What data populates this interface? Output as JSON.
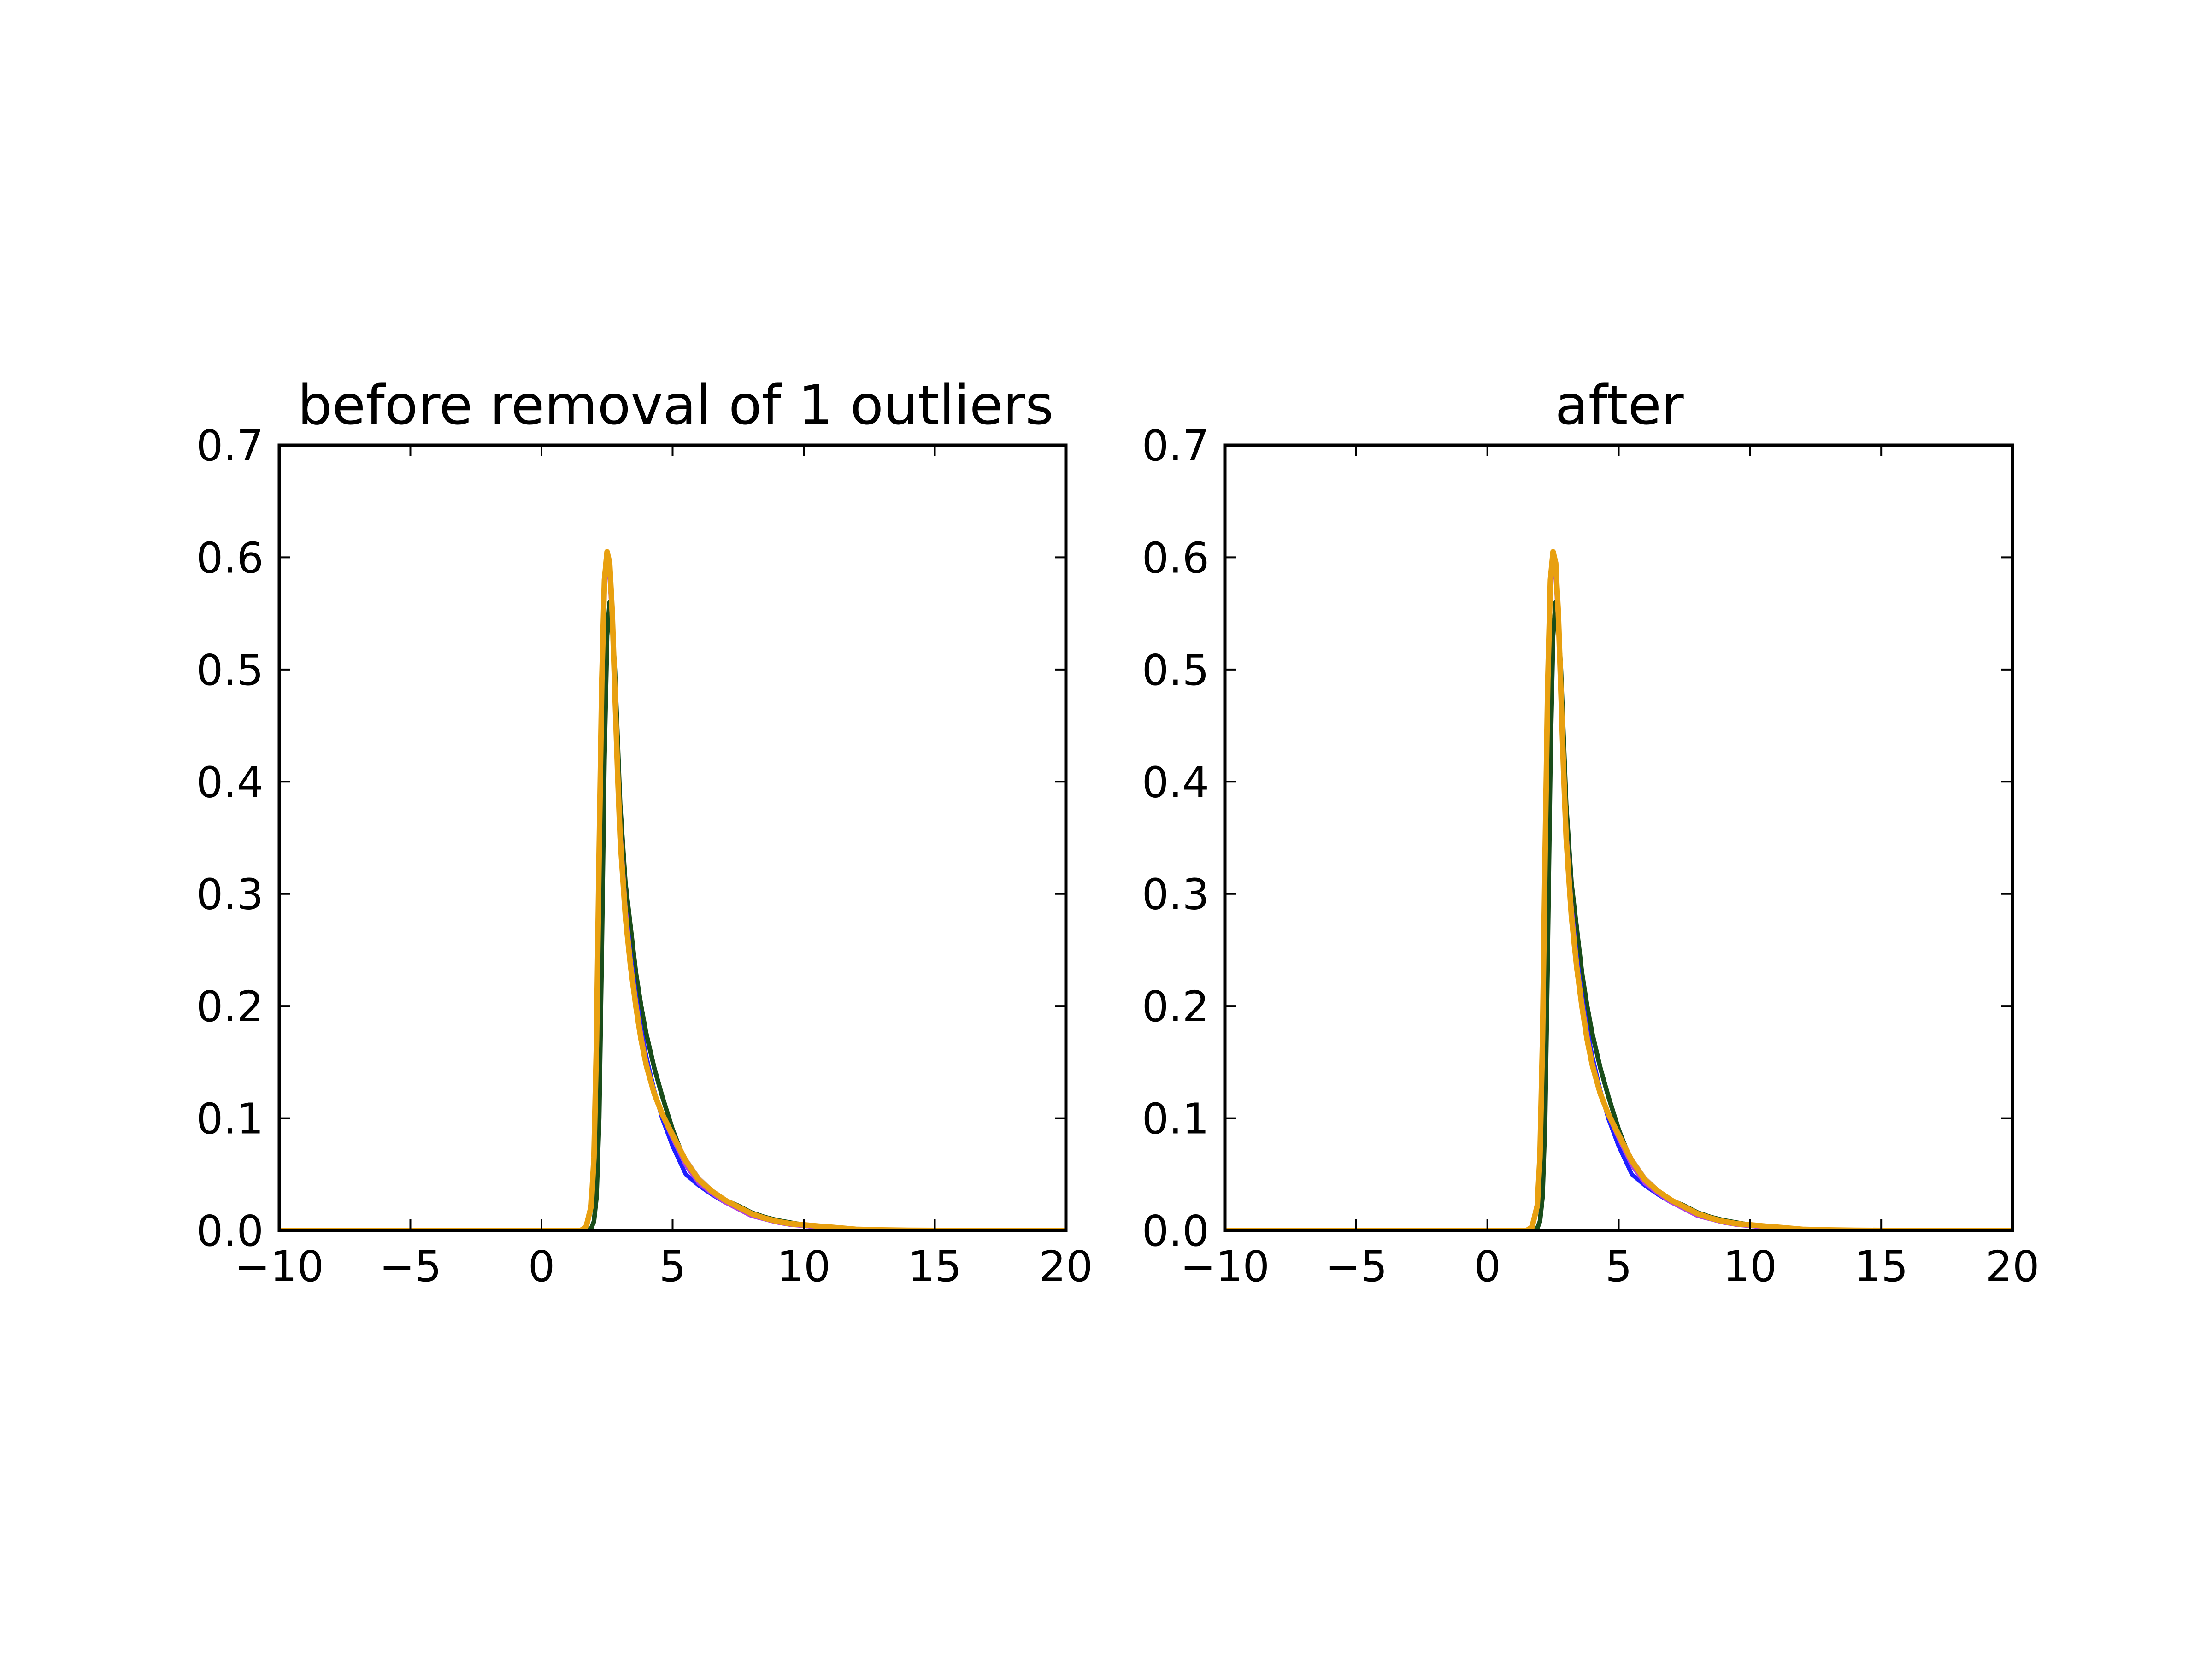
{
  "chart_data": [
    {
      "type": "line",
      "title": "before removal of 1 outliers",
      "xlabel": "",
      "ylabel": "",
      "xlim": [
        -10,
        20
      ],
      "ylim": [
        0.0,
        0.7
      ],
      "xticks": [
        -10,
        -5,
        0,
        5,
        10,
        15,
        20
      ],
      "xtick_labels": [
        "−10",
        "−5",
        "0",
        "5",
        "10",
        "15",
        "20"
      ],
      "yticks": [
        0.0,
        0.1,
        0.2,
        0.3,
        0.4,
        0.5,
        0.6,
        0.7
      ],
      "ytick_labels": [
        "0.0",
        "0.1",
        "0.2",
        "0.3",
        "0.4",
        "0.5",
        "0.6",
        "0.7"
      ],
      "grid": false,
      "legend": "none",
      "x": [
        -10,
        1.0,
        1.5,
        1.7,
        1.9,
        2.0,
        2.1,
        2.2,
        2.3,
        2.4,
        2.5,
        2.6,
        2.7,
        2.8,
        2.9,
        3.0,
        3.2,
        3.4,
        3.6,
        3.8,
        4.0,
        4.3,
        4.6,
        5.0,
        5.5,
        6.0,
        6.5,
        7.0,
        7.5,
        8.0,
        8.5,
        9.0,
        9.5,
        10.0,
        10.5,
        11.0,
        11.5,
        12.0,
        13.0,
        14.0,
        15.0,
        20.0
      ],
      "series": [
        {
          "color": "#1a4d1a",
          "values": [
            0,
            0,
            0,
            0,
            0.002,
            0.008,
            0.03,
            0.1,
            0.25,
            0.42,
            0.53,
            0.56,
            0.54,
            0.5,
            0.44,
            0.38,
            0.31,
            0.27,
            0.23,
            0.2,
            0.175,
            0.145,
            0.12,
            0.09,
            0.06,
            0.045,
            0.035,
            0.027,
            0.022,
            0.016,
            0.012,
            0.009,
            0.007,
            0.005,
            0.004,
            0.003,
            0.002,
            0.001,
            0.0004,
            0.0001,
            0,
            0
          ]
        },
        {
          "color": "#1f1fff",
          "values": [
            0,
            0,
            0,
            0.003,
            0.02,
            0.06,
            0.16,
            0.33,
            0.48,
            0.57,
            0.6,
            0.59,
            0.55,
            0.49,
            0.42,
            0.36,
            0.29,
            0.245,
            0.21,
            0.18,
            0.155,
            0.125,
            0.1,
            0.075,
            0.05,
            0.04,
            0.032,
            0.025,
            0.02,
            0.015,
            0.011,
            0.008,
            0.006,
            0.004,
            0.003,
            0.002,
            0.0015,
            0.001,
            0.0004,
            0.0001,
            0,
            0
          ]
        },
        {
          "color": "#b040e0",
          "values": [
            0,
            0,
            0,
            0.004,
            0.025,
            0.07,
            0.18,
            0.35,
            0.5,
            0.58,
            0.6,
            0.58,
            0.54,
            0.48,
            0.42,
            0.36,
            0.29,
            0.24,
            0.205,
            0.175,
            0.15,
            0.123,
            0.103,
            0.082,
            0.058,
            0.042,
            0.033,
            0.025,
            0.019,
            0.013,
            0.01,
            0.007,
            0.005,
            0.004,
            0.003,
            0.002,
            0.0015,
            0.001,
            0.0004,
            0.0001,
            0,
            0
          ]
        },
        {
          "color": "#8b1a1a",
          "values": [
            0,
            0,
            0,
            0.003,
            0.022,
            0.065,
            0.17,
            0.34,
            0.49,
            0.58,
            0.605,
            0.59,
            0.55,
            0.48,
            0.41,
            0.35,
            0.28,
            0.235,
            0.2,
            0.17,
            0.147,
            0.122,
            0.104,
            0.085,
            0.062,
            0.045,
            0.035,
            0.027,
            0.021,
            0.015,
            0.011,
            0.008,
            0.006,
            0.005,
            0.004,
            0.003,
            0.002,
            0.001,
            0.0004,
            0.0001,
            0,
            0
          ]
        },
        {
          "color": "#c9a0a0",
          "values": [
            0,
            0,
            0,
            0.003,
            0.022,
            0.065,
            0.17,
            0.34,
            0.49,
            0.58,
            0.6,
            0.59,
            0.55,
            0.48,
            0.41,
            0.35,
            0.28,
            0.235,
            0.2,
            0.17,
            0.147,
            0.123,
            0.105,
            0.087,
            0.064,
            0.047,
            0.036,
            0.028,
            0.021,
            0.015,
            0.011,
            0.008,
            0.006,
            0.005,
            0.004,
            0.003,
            0.002,
            0.001,
            0.0004,
            0.0001,
            0,
            0
          ]
        },
        {
          "color": "#e8a010",
          "values": [
            0,
            0,
            0,
            0.003,
            0.022,
            0.065,
            0.17,
            0.34,
            0.49,
            0.58,
            0.605,
            0.595,
            0.55,
            0.48,
            0.41,
            0.35,
            0.28,
            0.235,
            0.2,
            0.17,
            0.147,
            0.122,
            0.104,
            0.085,
            0.062,
            0.045,
            0.035,
            0.027,
            0.021,
            0.015,
            0.011,
            0.008,
            0.006,
            0.005,
            0.004,
            0.003,
            0.002,
            0.001,
            0.0004,
            0.0001,
            0,
            0
          ]
        }
      ]
    },
    {
      "type": "line",
      "title": "after",
      "xlabel": "",
      "ylabel": "",
      "xlim": [
        -10,
        20
      ],
      "ylim": [
        0.0,
        0.7
      ],
      "xticks": [
        -10,
        -5,
        0,
        5,
        10,
        15,
        20
      ],
      "xtick_labels": [
        "−10",
        "−5",
        "0",
        "5",
        "10",
        "15",
        "20"
      ],
      "yticks": [
        0.0,
        0.1,
        0.2,
        0.3,
        0.4,
        0.5,
        0.6,
        0.7
      ],
      "ytick_labels": [
        "0.0",
        "0.1",
        "0.2",
        "0.3",
        "0.4",
        "0.5",
        "0.6",
        "0.7"
      ],
      "grid": false,
      "legend": "none",
      "x": [
        -10,
        1.0,
        1.5,
        1.7,
        1.9,
        2.0,
        2.1,
        2.2,
        2.3,
        2.4,
        2.5,
        2.6,
        2.7,
        2.8,
        2.9,
        3.0,
        3.2,
        3.4,
        3.6,
        3.8,
        4.0,
        4.3,
        4.6,
        5.0,
        5.5,
        6.0,
        6.5,
        7.0,
        7.5,
        8.0,
        8.5,
        9.0,
        9.5,
        10.0,
        10.5,
        11.0,
        11.5,
        12.0,
        13.0,
        14.0,
        15.0,
        20.0
      ],
      "series": [
        {
          "color": "#1a4d1a",
          "values": [
            0,
            0,
            0,
            0,
            0.002,
            0.008,
            0.03,
            0.1,
            0.25,
            0.42,
            0.53,
            0.56,
            0.54,
            0.5,
            0.44,
            0.38,
            0.31,
            0.27,
            0.23,
            0.2,
            0.175,
            0.145,
            0.12,
            0.09,
            0.06,
            0.045,
            0.035,
            0.027,
            0.022,
            0.016,
            0.012,
            0.009,
            0.007,
            0.005,
            0.004,
            0.003,
            0.002,
            0.001,
            0.0004,
            0.0001,
            0,
            0
          ]
        },
        {
          "color": "#1f1fff",
          "values": [
            0,
            0,
            0,
            0.003,
            0.02,
            0.06,
            0.16,
            0.33,
            0.48,
            0.57,
            0.6,
            0.59,
            0.55,
            0.49,
            0.42,
            0.36,
            0.29,
            0.245,
            0.21,
            0.18,
            0.155,
            0.125,
            0.1,
            0.075,
            0.05,
            0.04,
            0.032,
            0.025,
            0.02,
            0.015,
            0.011,
            0.008,
            0.006,
            0.004,
            0.003,
            0.002,
            0.0015,
            0.001,
            0.0004,
            0.0001,
            0,
            0
          ]
        },
        {
          "color": "#b040e0",
          "values": [
            0,
            0,
            0,
            0.004,
            0.025,
            0.07,
            0.18,
            0.35,
            0.5,
            0.58,
            0.6,
            0.58,
            0.54,
            0.48,
            0.42,
            0.36,
            0.29,
            0.24,
            0.205,
            0.175,
            0.15,
            0.123,
            0.103,
            0.082,
            0.058,
            0.042,
            0.033,
            0.025,
            0.019,
            0.013,
            0.01,
            0.007,
            0.005,
            0.004,
            0.003,
            0.002,
            0.0015,
            0.001,
            0.0004,
            0.0001,
            0,
            0
          ]
        },
        {
          "color": "#8b1a1a",
          "values": [
            0,
            0,
            0,
            0.003,
            0.022,
            0.065,
            0.17,
            0.34,
            0.49,
            0.58,
            0.605,
            0.59,
            0.55,
            0.48,
            0.41,
            0.35,
            0.28,
            0.235,
            0.2,
            0.17,
            0.147,
            0.122,
            0.104,
            0.085,
            0.062,
            0.045,
            0.035,
            0.027,
            0.021,
            0.015,
            0.011,
            0.008,
            0.006,
            0.005,
            0.004,
            0.003,
            0.002,
            0.001,
            0.0004,
            0.0001,
            0,
            0
          ]
        },
        {
          "color": "#c9a0a0",
          "values": [
            0,
            0,
            0,
            0.003,
            0.022,
            0.065,
            0.17,
            0.34,
            0.49,
            0.58,
            0.6,
            0.59,
            0.55,
            0.48,
            0.41,
            0.35,
            0.28,
            0.235,
            0.2,
            0.17,
            0.147,
            0.123,
            0.105,
            0.087,
            0.064,
            0.047,
            0.036,
            0.028,
            0.021,
            0.015,
            0.011,
            0.008,
            0.006,
            0.005,
            0.004,
            0.003,
            0.002,
            0.001,
            0.0004,
            0.0001,
            0,
            0
          ]
        },
        {
          "color": "#e8a010",
          "values": [
            0,
            0,
            0,
            0.003,
            0.022,
            0.065,
            0.17,
            0.34,
            0.49,
            0.58,
            0.605,
            0.595,
            0.55,
            0.48,
            0.41,
            0.35,
            0.28,
            0.235,
            0.2,
            0.17,
            0.147,
            0.122,
            0.104,
            0.085,
            0.062,
            0.045,
            0.035,
            0.027,
            0.021,
            0.015,
            0.011,
            0.008,
            0.006,
            0.005,
            0.004,
            0.003,
            0.002,
            0.001,
            0.0004,
            0.0001,
            0,
            0
          ]
        }
      ]
    }
  ]
}
